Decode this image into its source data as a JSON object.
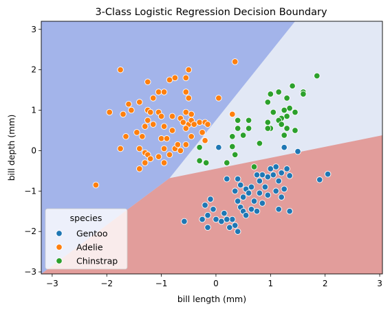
{
  "chart_data": {
    "type": "scatter",
    "title": "3-Class Logistic Regression Decision Boundary",
    "xlabel": "bill length (mm)",
    "ylabel": "bill depth (mm)",
    "xlim": [
      -3.2,
      3.05
    ],
    "ylim": [
      -3.05,
      3.2
    ],
    "xticks": [
      -3,
      -2,
      -1,
      0,
      1,
      2,
      3
    ],
    "yticks": [
      -3,
      -2,
      -1,
      0,
      1,
      2,
      3
    ],
    "grid": false,
    "legend": {
      "title": "species",
      "placement": "lower-left"
    },
    "regions": [
      {
        "name": "Adelie",
        "color": "#a3b4ea"
      },
      {
        "name": "Chinstrap",
        "color": "#e2e8f5"
      },
      {
        "name": "Gentoo",
        "color": "#e29d9b"
      }
    ],
    "boundaries": {
      "adelie_chinstrap": [
        [
          -0.85,
          -0.68
        ],
        [
          1.45,
          3.2
        ]
      ],
      "chinstrap_gentoo": [
        [
          -0.85,
          -0.68
        ],
        [
          3.05,
          0.38
        ]
      ]
    },
    "series": [
      {
        "name": "Gentoo",
        "color": "#1f77b4",
        "points": [
          [
            0.05,
            0.08
          ],
          [
            1.25,
            0.08
          ],
          [
            1.5,
            -0.02
          ],
          [
            -0.58,
            -1.75
          ],
          [
            0.2,
            -0.7
          ],
          [
            0.4,
            -0.7
          ],
          [
            0.45,
            -0.85
          ],
          [
            0.55,
            -0.95
          ],
          [
            0.35,
            -1.0
          ],
          [
            0.6,
            -1.05
          ],
          [
            0.4,
            -1.25
          ],
          [
            0.45,
            -1.4
          ],
          [
            0.5,
            -1.5
          ],
          [
            0.55,
            -1.6
          ],
          [
            0.3,
            -1.7
          ],
          [
            0.35,
            -1.85
          ],
          [
            0.2,
            -1.7
          ],
          [
            0.25,
            -1.9
          ],
          [
            0.4,
            -2.0
          ],
          [
            -0.1,
            -1.2
          ],
          [
            -0.05,
            -1.45
          ],
          [
            -0.2,
            -1.35
          ],
          [
            -0.15,
            -1.6
          ],
          [
            -0.25,
            -1.7
          ],
          [
            -0.15,
            -1.9
          ],
          [
            0.0,
            -1.7
          ],
          [
            0.1,
            -1.75
          ],
          [
            0.15,
            -1.55
          ],
          [
            0.65,
            -1.45
          ],
          [
            0.75,
            -1.5
          ],
          [
            0.7,
            -1.25
          ],
          [
            0.8,
            -1.05
          ],
          [
            0.85,
            -1.3
          ],
          [
            0.9,
            -0.9
          ],
          [
            0.95,
            -0.65
          ],
          [
            1.0,
            -0.45
          ],
          [
            1.05,
            -0.6
          ],
          [
            1.1,
            -0.4
          ],
          [
            1.15,
            -0.75
          ],
          [
            1.2,
            -0.55
          ],
          [
            1.25,
            -0.95
          ],
          [
            1.3,
            -0.45
          ],
          [
            1.35,
            -0.62
          ],
          [
            1.1,
            -1.0
          ],
          [
            1.2,
            -1.15
          ],
          [
            0.95,
            -1.1
          ],
          [
            1.15,
            -1.45
          ],
          [
            1.35,
            -1.5
          ],
          [
            0.85,
            -0.6
          ],
          [
            0.75,
            -0.6
          ],
          [
            1.9,
            -0.72
          ],
          [
            2.05,
            -0.58
          ],
          [
            0.5,
            -1.15
          ],
          [
            0.65,
            -0.9
          ],
          [
            0.8,
            -0.75
          ]
        ]
      },
      {
        "name": "Adelie",
        "color": "#ff7f0e",
        "points": [
          [
            -1.75,
            2.0
          ],
          [
            -0.5,
            2.0
          ],
          [
            0.35,
            2.2
          ],
          [
            -0.55,
            1.8
          ],
          [
            -0.85,
            1.75
          ],
          [
            -0.75,
            1.8
          ],
          [
            -1.25,
            1.7
          ],
          [
            -1.05,
            1.45
          ],
          [
            -0.95,
            1.45
          ],
          [
            -1.15,
            1.3
          ],
          [
            -0.55,
            1.45
          ],
          [
            -0.5,
            1.3
          ],
          [
            0.05,
            1.3
          ],
          [
            -1.6,
            1.15
          ],
          [
            -1.4,
            1.2
          ],
          [
            -1.55,
            1.0
          ],
          [
            -1.95,
            0.95
          ],
          [
            -1.7,
            0.9
          ],
          [
            -1.25,
            1.0
          ],
          [
            -1.2,
            0.95
          ],
          [
            -1.05,
            0.95
          ],
          [
            -1.0,
            0.85
          ],
          [
            -0.95,
            0.6
          ],
          [
            -0.8,
            0.85
          ],
          [
            -0.65,
            0.8
          ],
          [
            -0.55,
            0.95
          ],
          [
            -0.45,
            0.9
          ],
          [
            -0.3,
            0.7
          ],
          [
            -0.6,
            0.7
          ],
          [
            -0.5,
            0.65
          ],
          [
            -0.45,
            0.75
          ],
          [
            -0.55,
            0.55
          ],
          [
            -0.4,
            0.65
          ],
          [
            -1.15,
            0.65
          ],
          [
            -1.25,
            0.75
          ],
          [
            -1.3,
            0.6
          ],
          [
            -1.45,
            0.45
          ],
          [
            -1.35,
            0.35
          ],
          [
            -0.8,
            0.5
          ],
          [
            -1.65,
            0.35
          ],
          [
            -1.75,
            0.05
          ],
          [
            -1.4,
            0.05
          ],
          [
            -1.3,
            -0.05
          ],
          [
            -1.25,
            -0.1
          ],
          [
            -1.2,
            -0.2
          ],
          [
            -1.3,
            -0.3
          ],
          [
            -1.4,
            -0.45
          ],
          [
            -1.0,
            0.3
          ],
          [
            -0.9,
            0.3
          ],
          [
            -0.95,
            0.05
          ],
          [
            -0.75,
            0.05
          ],
          [
            -0.65,
            0.0
          ],
          [
            -0.7,
            0.15
          ],
          [
            -0.85,
            -0.1
          ],
          [
            -0.95,
            -0.3
          ],
          [
            -1.05,
            -0.15
          ],
          [
            -0.2,
            0.7
          ],
          [
            -0.15,
            0.65
          ],
          [
            -0.2,
            0.25
          ],
          [
            -0.25,
            0.45
          ],
          [
            0.3,
            0.9
          ],
          [
            -2.2,
            -0.85
          ],
          [
            -0.55,
            0.15
          ],
          [
            -0.45,
            0.35
          ]
        ]
      },
      {
        "name": "Chinstrap",
        "color": "#2ca02c",
        "points": [
          [
            1.85,
            1.85
          ],
          [
            1.4,
            1.6
          ],
          [
            1.6,
            1.45
          ],
          [
            1.15,
            1.45
          ],
          [
            1.0,
            1.4
          ],
          [
            0.95,
            1.2
          ],
          [
            1.3,
            1.3
          ],
          [
            1.35,
            1.05
          ],
          [
            1.25,
            1.0
          ],
          [
            1.3,
            0.85
          ],
          [
            1.2,
            0.8
          ],
          [
            1.45,
            0.95
          ],
          [
            1.6,
            1.4
          ],
          [
            1.05,
            0.95
          ],
          [
            1.15,
            0.75
          ],
          [
            1.2,
            0.65
          ],
          [
            1.0,
            0.55
          ],
          [
            0.95,
            0.7
          ],
          [
            0.6,
            0.55
          ],
          [
            0.6,
            0.75
          ],
          [
            0.4,
            0.75
          ],
          [
            0.4,
            0.55
          ],
          [
            0.5,
            0.38
          ],
          [
            0.3,
            0.35
          ],
          [
            0.95,
            0.55
          ],
          [
            1.3,
            0.55
          ],
          [
            1.45,
            0.5
          ],
          [
            1.25,
            0.38
          ],
          [
            0.8,
            0.18
          ],
          [
            0.3,
            0.1
          ],
          [
            -0.3,
            0.08
          ],
          [
            -0.3,
            -0.25
          ],
          [
            -0.18,
            -0.3
          ],
          [
            0.2,
            -0.3
          ],
          [
            0.35,
            -0.1
          ],
          [
            0.7,
            -0.4
          ]
        ]
      }
    ]
  }
}
